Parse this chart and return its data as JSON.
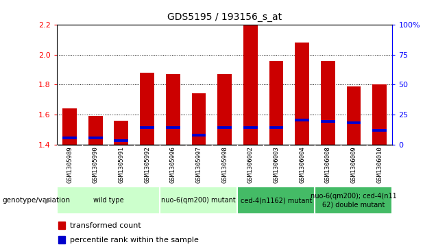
{
  "title": "GDS5195 / 193156_s_at",
  "samples": [
    "GSM1305989",
    "GSM1305990",
    "GSM1305991",
    "GSM1305992",
    "GSM1305996",
    "GSM1305997",
    "GSM1305998",
    "GSM1306002",
    "GSM1306003",
    "GSM1306004",
    "GSM1306008",
    "GSM1306009",
    "GSM1306010"
  ],
  "transformed_count": [
    1.64,
    1.59,
    1.56,
    1.88,
    1.87,
    1.74,
    1.87,
    2.2,
    1.96,
    2.08,
    1.96,
    1.79,
    1.8
  ],
  "percentile_pos": [
    1.435,
    1.435,
    1.415,
    1.505,
    1.505,
    1.455,
    1.505,
    1.505,
    1.505,
    1.555,
    1.545,
    1.535,
    1.485
  ],
  "ylim": [
    1.4,
    2.2
  ],
  "y2lim": [
    0,
    100
  ],
  "y2ticks": [
    0,
    25,
    50,
    75,
    100
  ],
  "y2ticklabels": [
    "0",
    "25",
    "50",
    "75",
    "100%"
  ],
  "yticks": [
    1.4,
    1.6,
    1.8,
    2.0,
    2.2
  ],
  "bar_color": "#cc0000",
  "percentile_color": "#0000cc",
  "group_labels": [
    "wild type",
    "nuo-6(qm200) mutant",
    "ced-4(n1162) mutant",
    "nuo-6(qm200); ced-4(n11\n62) double mutant"
  ],
  "group_colors_light": "#ccffcc",
  "group_colors_dark": "#44bb66",
  "group_ranges": [
    [
      0,
      3
    ],
    [
      4,
      6
    ],
    [
      7,
      9
    ],
    [
      10,
      12
    ]
  ],
  "genotype_label": "genotype/variation",
  "legend_transformed": "transformed count",
  "legend_percentile": "percentile rank within the sample",
  "sample_bg_color": "#cccccc",
  "plot_bg": "#ffffff",
  "bar_width": 0.55
}
